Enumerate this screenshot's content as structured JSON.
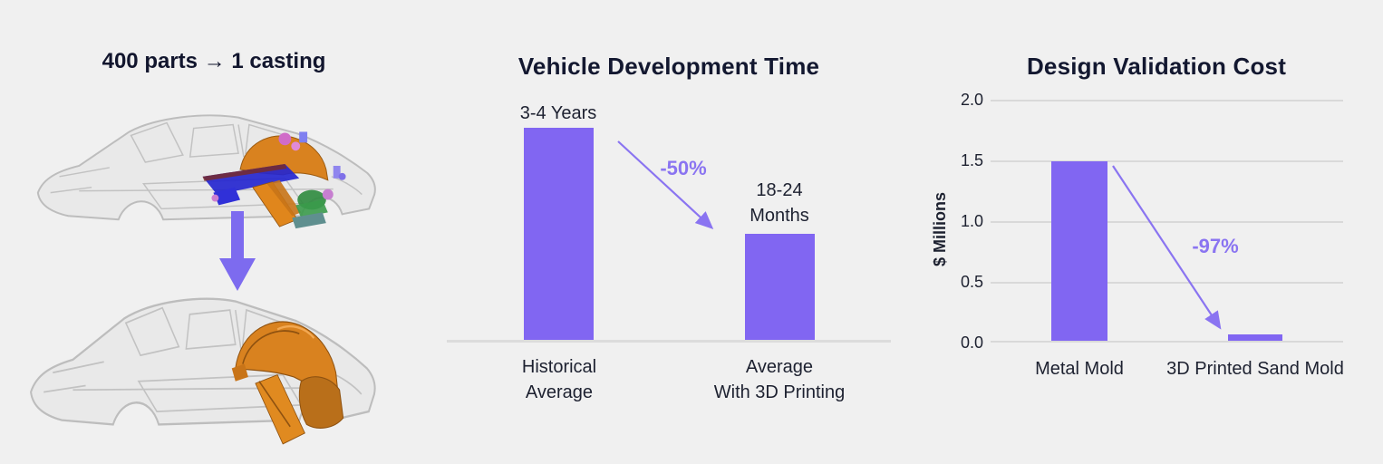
{
  "colors": {
    "background": "#f0f0f0",
    "bar_purple": "#8166f2",
    "arrow_purple": "#8a74f1",
    "title_navy": "#131830",
    "gridline_gray": "#d9d9d9",
    "casting_orange": "#d9821f"
  },
  "left_panel": {
    "title": "400 parts → 1 casting",
    "top_image": "car body-in-white with ~400 colored stamped parts at rear",
    "bottom_image": "car body-in-white with single orange rear casting",
    "transition_arrow": "down"
  },
  "chart_data": [
    {
      "type": "bar",
      "title": "Vehicle Development Time",
      "categories": [
        "Historical Average",
        "Average With 3D Printing"
      ],
      "category_lines": [
        [
          "Historical",
          "Average"
        ],
        [
          "Average",
          "With 3D Printing"
        ]
      ],
      "bar_value_labels": [
        [
          "3-4 Years"
        ],
        [
          "18-24",
          "Months"
        ]
      ],
      "values": [
        42,
        21
      ],
      "values_unit": "months (approx.; 3-4 years vs 18-24 months)",
      "annotation": "-50%",
      "grid": false,
      "baseline": true,
      "ylabel": "",
      "xlabel": ""
    },
    {
      "type": "bar",
      "title": "Design Validation Cost",
      "categories": [
        "Metal Mold",
        "3D Printed Sand Mold"
      ],
      "values": [
        1.5,
        0.05
      ],
      "ylabel": "$ Millions",
      "xlabel": "",
      "ylim": [
        0,
        2.0
      ],
      "ytick_labels": [
        "0.0",
        "0.5",
        "1.0",
        "1.5",
        "2.0"
      ],
      "annotation": "-97%",
      "grid": true
    }
  ]
}
